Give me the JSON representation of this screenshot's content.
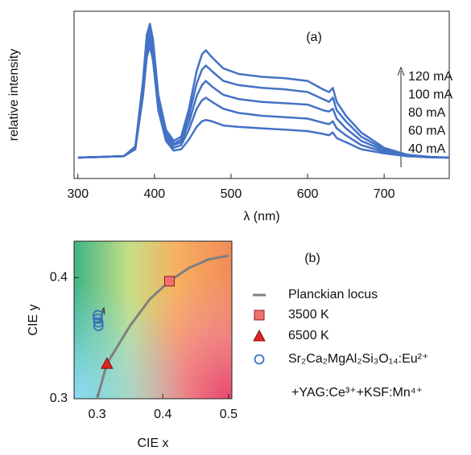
{
  "chart_data": [
    {
      "type": "line",
      "panel_label": "(a)",
      "xlabel": "λ (nm)",
      "ylabel": "relative intensity",
      "xlim": [
        295,
        785
      ],
      "xticks": [
        300,
        400,
        500,
        600,
        700
      ],
      "ylim": [
        -0.15,
        1.05
      ],
      "x": [
        300,
        360,
        375,
        385,
        390,
        394,
        398,
        405,
        415,
        425,
        435,
        445,
        455,
        462,
        467,
        475,
        490,
        510,
        540,
        570,
        600,
        620,
        628,
        633,
        638,
        650,
        670,
        700,
        730,
        760,
        785
      ],
      "series": [
        {
          "name": "120 mA",
          "color": "#4472c4",
          "values": [
            0,
            0.01,
            0.08,
            0.55,
            0.88,
            0.96,
            0.85,
            0.45,
            0.2,
            0.12,
            0.15,
            0.35,
            0.62,
            0.74,
            0.77,
            0.72,
            0.64,
            0.6,
            0.58,
            0.57,
            0.55,
            0.49,
            0.47,
            0.5,
            0.4,
            0.3,
            0.18,
            0.07,
            0.02,
            0.005,
            0
          ]
        },
        {
          "name": "100 mA",
          "color": "#4472c4",
          "values": [
            0,
            0.01,
            0.07,
            0.52,
            0.84,
            0.92,
            0.82,
            0.42,
            0.18,
            0.1,
            0.13,
            0.3,
            0.53,
            0.63,
            0.66,
            0.62,
            0.55,
            0.52,
            0.5,
            0.49,
            0.47,
            0.42,
            0.4,
            0.43,
            0.34,
            0.26,
            0.15,
            0.06,
            0.02,
            0.004,
            0
          ]
        },
        {
          "name": "80 mA",
          "color": "#4472c4",
          "values": [
            0,
            0.01,
            0.07,
            0.5,
            0.8,
            0.88,
            0.78,
            0.4,
            0.16,
            0.09,
            0.11,
            0.25,
            0.44,
            0.52,
            0.55,
            0.51,
            0.45,
            0.42,
            0.4,
            0.39,
            0.38,
            0.34,
            0.33,
            0.35,
            0.28,
            0.21,
            0.12,
            0.05,
            0.015,
            0.003,
            0
          ]
        },
        {
          "name": "60 mA",
          "color": "#4472c4",
          "values": [
            0,
            0.01,
            0.06,
            0.47,
            0.76,
            0.84,
            0.74,
            0.37,
            0.14,
            0.07,
            0.09,
            0.2,
            0.35,
            0.41,
            0.43,
            0.4,
            0.35,
            0.32,
            0.3,
            0.29,
            0.28,
            0.25,
            0.24,
            0.26,
            0.21,
            0.16,
            0.09,
            0.04,
            0.01,
            0.002,
            0
          ]
        },
        {
          "name": "40 mA",
          "color": "#4472c4",
          "values": [
            0,
            0.01,
            0.06,
            0.44,
            0.72,
            0.8,
            0.7,
            0.34,
            0.12,
            0.05,
            0.06,
            0.13,
            0.22,
            0.26,
            0.27,
            0.26,
            0.23,
            0.22,
            0.21,
            0.2,
            0.19,
            0.17,
            0.16,
            0.18,
            0.14,
            0.11,
            0.06,
            0.03,
            0.01,
            0.002,
            0
          ]
        }
      ]
    },
    {
      "type": "scatter",
      "panel_label": "(b)",
      "xlabel": "CIE x",
      "ylabel": "CIE y",
      "xlim": [
        0.265,
        0.505
      ],
      "xticks": [
        0.3,
        0.4,
        0.5
      ],
      "ylim": [
        0.3,
        0.43
      ],
      "yticks": [
        0.3,
        0.4
      ],
      "series": [
        {
          "name": "Planckian locus",
          "color": "#7f7f7f",
          "marker": "line",
          "x": [
            0.3,
            0.315,
            0.35,
            0.38,
            0.41,
            0.44,
            0.47,
            0.5
          ],
          "y": [
            0.3,
            0.329,
            0.36,
            0.382,
            0.397,
            0.408,
            0.415,
            0.418
          ]
        },
        {
          "name": "3500 K",
          "color": "#f07070",
          "marker": "square",
          "x": [
            0.41
          ],
          "y": [
            0.397
          ]
        },
        {
          "name": "6500 K",
          "color": "#e02424",
          "marker": "triangle",
          "x": [
            0.315
          ],
          "y": [
            0.329
          ]
        },
        {
          "name": [
            "Sr₂Ca₂MgAl₂Si₃O₁₄:Eu²⁺",
            "+YAG:Ce³⁺+KSF:Mn⁴⁺"
          ],
          "color": "#3a70c0",
          "marker": "circle",
          "x": [
            0.301,
            0.301,
            0.302,
            0.302
          ],
          "y": [
            0.369,
            0.366,
            0.363,
            0.36
          ]
        }
      ]
    }
  ]
}
